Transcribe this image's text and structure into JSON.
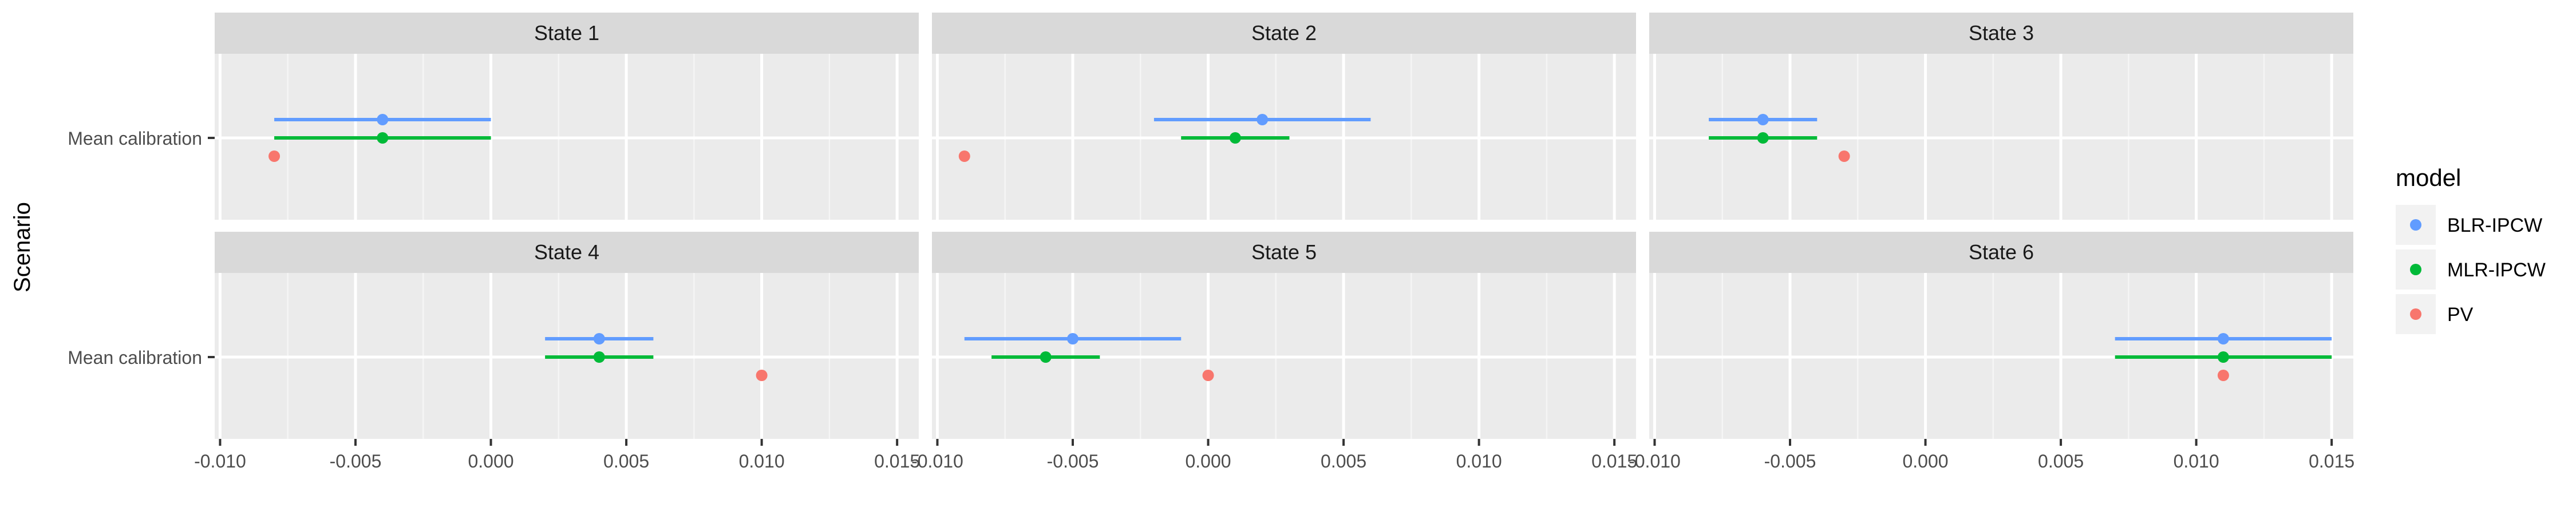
{
  "chart_data": {
    "type": "scatter",
    "ylabel": "Scenario",
    "category": "Mean calibration",
    "xlim": [
      -0.0102,
      0.0158
    ],
    "x_ticks": [
      -0.01,
      -0.005,
      0.0,
      0.005,
      0.01,
      0.015
    ],
    "x_tick_labels": [
      "-0.010",
      "-0.005",
      "0.000",
      "0.005",
      "0.010",
      "0.015"
    ],
    "legend": {
      "title": "model",
      "position": "right",
      "entries": [
        {
          "name": "BLR-IPCW",
          "color": "#619CFF"
        },
        {
          "name": "MLR-IPCW",
          "color": "#00BA38"
        },
        {
          "name": "PV",
          "color": "#F8766D"
        }
      ]
    },
    "panels": [
      {
        "title": "State 1",
        "series": [
          {
            "model": "BLR-IPCW",
            "estimate": -0.004,
            "lower": -0.008,
            "upper": 0.0
          },
          {
            "model": "MLR-IPCW",
            "estimate": -0.004,
            "lower": -0.008,
            "upper": 0.0
          },
          {
            "model": "PV",
            "estimate": -0.008
          }
        ]
      },
      {
        "title": "State 2",
        "series": [
          {
            "model": "BLR-IPCW",
            "estimate": 0.002,
            "lower": -0.002,
            "upper": 0.006
          },
          {
            "model": "MLR-IPCW",
            "estimate": 0.001,
            "lower": -0.001,
            "upper": 0.003
          },
          {
            "model": "PV",
            "estimate": -0.009
          }
        ]
      },
      {
        "title": "State 3",
        "series": [
          {
            "model": "BLR-IPCW",
            "estimate": -0.006,
            "lower": -0.008,
            "upper": -0.004
          },
          {
            "model": "MLR-IPCW",
            "estimate": -0.006,
            "lower": -0.008,
            "upper": -0.004
          },
          {
            "model": "PV",
            "estimate": -0.003
          }
        ]
      },
      {
        "title": "State 4",
        "series": [
          {
            "model": "BLR-IPCW",
            "estimate": 0.004,
            "lower": 0.002,
            "upper": 0.006
          },
          {
            "model": "MLR-IPCW",
            "estimate": 0.004,
            "lower": 0.002,
            "upper": 0.006
          },
          {
            "model": "PV",
            "estimate": 0.01
          }
        ]
      },
      {
        "title": "State 5",
        "series": [
          {
            "model": "BLR-IPCW",
            "estimate": -0.005,
            "lower": -0.009,
            "upper": -0.001
          },
          {
            "model": "MLR-IPCW",
            "estimate": -0.006,
            "lower": -0.008,
            "upper": -0.004
          },
          {
            "model": "PV",
            "estimate": 0.0
          }
        ]
      },
      {
        "title": "State 6",
        "series": [
          {
            "model": "BLR-IPCW",
            "estimate": 0.011,
            "lower": 0.007,
            "upper": 0.015
          },
          {
            "model": "MLR-IPCW",
            "estimate": 0.011,
            "lower": 0.007,
            "upper": 0.015
          },
          {
            "model": "PV",
            "estimate": 0.011
          }
        ]
      }
    ]
  }
}
